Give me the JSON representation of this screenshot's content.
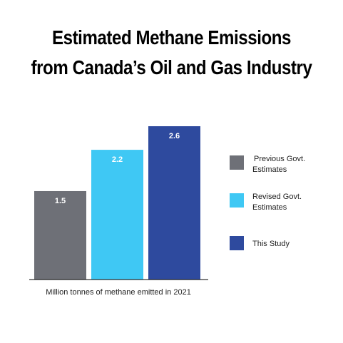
{
  "title": {
    "line1": "Estimated Methane Emissions",
    "line2": "from Canada’s Oil and Gas Industry"
  },
  "chart_data": {
    "type": "bar",
    "categories": [
      "Previous Govt. Estimates",
      "Revised Govt. Estimates",
      "This Study"
    ],
    "values": [
      1.5,
      2.2,
      2.6
    ],
    "value_labels": [
      "1.5",
      "2.2",
      "2.6"
    ],
    "colors": [
      "#6e7077",
      "#3fc8f4",
      "#2e4a9e"
    ],
    "xlabel": "Million tonnes of methane emitted in 2021",
    "ylim": [
      0,
      2.6
    ],
    "grid": false,
    "legend": {
      "placement": "right",
      "entries": [
        {
          "lines": [
            "Previous Govt.",
            "Estimates"
          ],
          "color": "#6e7077"
        },
        {
          "lines": [
            "Revised Govt.",
            "Estimates"
          ],
          "color": "#3fc8f4"
        },
        {
          "lines": [
            "This Study"
          ],
          "color": "#2e4a9e"
        }
      ]
    }
  }
}
